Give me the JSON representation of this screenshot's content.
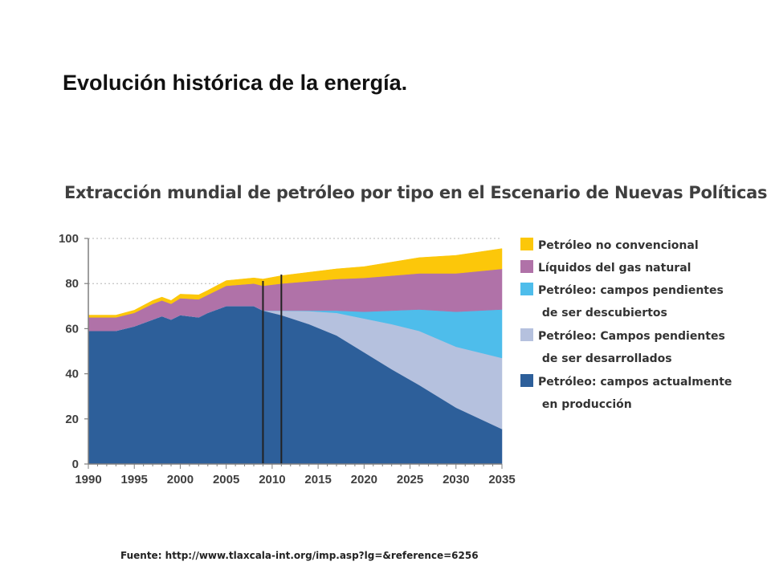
{
  "slide": {
    "title": "Evolución histórica de la energía.",
    "source": "Fuente: http://www.tlaxcala-int.org/imp.asp?lg=&reference=6256"
  },
  "chart_data": {
    "type": "area",
    "stacked": true,
    "title": "Extracción mundial de petróleo por tipo en el Escenario de Nuevas Políticas",
    "xlabel": "",
    "ylabel": "",
    "xlim": [
      1990,
      2035
    ],
    "ylim": [
      0,
      100
    ],
    "x_ticks": [
      "1990",
      "1995",
      "2000",
      "2005",
      "2010",
      "2015",
      "2020",
      "2025",
      "2030",
      "2035"
    ],
    "y_ticks": [
      "0",
      "20",
      "40",
      "60",
      "80",
      "100"
    ],
    "grid": "horizontal dotted",
    "legend_position": "right",
    "vertical_markers": [
      2009,
      2011
    ],
    "x": [
      1990,
      1993,
      1995,
      1997,
      1998,
      1999,
      2000,
      2002,
      2003,
      2005,
      2008,
      2009,
      2011,
      2014,
      2017,
      2020,
      2023,
      2026,
      2030,
      2035
    ],
    "series": [
      {
        "name": "Petróleo: campos actualmente\nen producción",
        "color": "#2d5f9a",
        "values": [
          59,
          59,
          61,
          64,
          65.5,
          64,
          66,
          65,
          67,
          70,
          70,
          68,
          66,
          62,
          57,
          49.5,
          42,
          35,
          25,
          15.5
        ]
      },
      {
        "name": "Petróleo: Campos pendientes\nde ser desarrollados",
        "color": "#b5c1de",
        "values": [
          0,
          0,
          0,
          0,
          0,
          0,
          0,
          0,
          0,
          0,
          0,
          0,
          2,
          5.8,
          10,
          15,
          20,
          24,
          27,
          31.5
        ]
      },
      {
        "name": "Petróleo: campos pendientes\nde ser descubiertos",
        "color": "#4ebdeb",
        "values": [
          0,
          0,
          0,
          0,
          0,
          0,
          0,
          0,
          0,
          0,
          0,
          0,
          0,
          0.2,
          1,
          3,
          6,
          9.5,
          15.5,
          21.5
        ]
      },
      {
        "name": "Líquidos del gas natural",
        "color": "#b072a8",
        "values": [
          6,
          6,
          6,
          7,
          7,
          7,
          7.5,
          8,
          8,
          9,
          10,
          11,
          12,
          13,
          14,
          15,
          15.5,
          16,
          17,
          18
        ]
      },
      {
        "name": "Petróleo no convencional",
        "color": "#fcc70a",
        "values": [
          1,
          1,
          1.2,
          1.5,
          1.5,
          1.5,
          1.8,
          2,
          2,
          2.3,
          2.5,
          3,
          3.5,
          4,
          4.5,
          5,
          6,
          7,
          8,
          9
        ]
      }
    ],
    "legend_order": [
      "Petróleo no convencional",
      "Líquidos del gas natural",
      "Petróleo: campos pendientes\nde ser descubiertos",
      "Petróleo: Campos pendientes\nde ser desarrollados",
      "Petróleo: campos actualmente\nen producción"
    ]
  }
}
